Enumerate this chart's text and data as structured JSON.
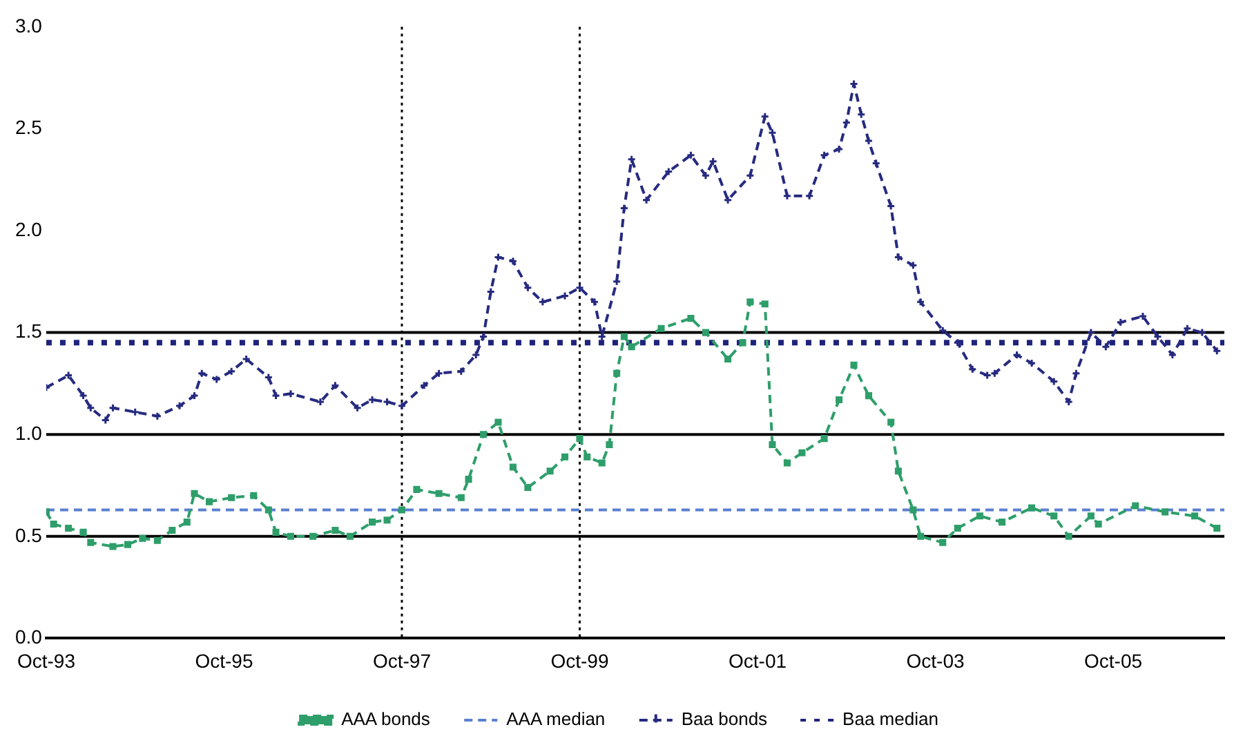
{
  "chart_data": {
    "type": "line",
    "xlim": [
      "1993-10",
      "2007-01"
    ],
    "xticks": [
      {
        "value": "1993-10",
        "label": "Oct-93"
      },
      {
        "value": "1995-10",
        "label": "Oct-95"
      },
      {
        "value": "1997-10",
        "label": "Oct-97"
      },
      {
        "value": "1999-10",
        "label": "Oct-99"
      },
      {
        "value": "2001-10",
        "label": "Oct-01"
      },
      {
        "value": "2003-10",
        "label": "Oct-03"
      },
      {
        "value": "2005-10",
        "label": "Oct-05"
      }
    ],
    "ylim": [
      0,
      3
    ],
    "yticks": [
      {
        "value": 0,
        "label": "0.0"
      },
      {
        "value": 0.5,
        "label": "0.5"
      },
      {
        "value": 1,
        "label": "1.0"
      },
      {
        "value": 1.5,
        "label": "1.5"
      },
      {
        "value": 2,
        "label": "2.0"
      },
      {
        "value": 2.5,
        "label": "2.5"
      },
      {
        "value": 3,
        "label": "3.0"
      }
    ],
    "grid": false,
    "legend": "bottom",
    "ref_lines": [
      {
        "axis": "y",
        "value": 0.5,
        "color": "#000000",
        "line_style": "solid"
      },
      {
        "axis": "y",
        "value": 1,
        "color": "#000000",
        "line_style": "solid"
      },
      {
        "axis": "y",
        "value": 1.5,
        "color": "#000000",
        "line_style": "solid"
      },
      {
        "axis": "x",
        "value": "1997-10",
        "color": "#000000",
        "line_style": "dotted"
      },
      {
        "axis": "x",
        "value": "1999-10",
        "color": "#000000",
        "line_style": "dotted"
      }
    ],
    "series": [
      {
        "name": "AAA bonds",
        "color": "#2e9e6a",
        "line_style": "dashed",
        "marker": "square",
        "x": [
          "1993-10",
          "1993-11",
          "1994-01",
          "1994-03",
          "1994-04",
          "1994-07",
          "1994-09",
          "1994-11",
          "1995-01",
          "1995-03",
          "1995-05",
          "1995-06",
          "1995-08",
          "1995-11",
          "1996-02",
          "1996-04",
          "1996-05",
          "1996-07",
          "1996-10",
          "1997-01",
          "1997-03",
          "1997-06",
          "1997-08",
          "1997-10",
          "1997-12",
          "1998-03",
          "1998-06",
          "1998-07",
          "1998-09",
          "1998-11",
          "1999-01",
          "1999-03",
          "1999-06",
          "1999-08",
          "1999-10",
          "1999-11",
          "2000-01",
          "2000-02",
          "2000-03",
          "2000-04",
          "2000-05",
          "2000-09",
          "2001-01",
          "2001-03",
          "2001-06",
          "2001-08",
          "2001-09",
          "2001-11",
          "2001-12",
          "2002-02",
          "2002-04",
          "2002-07",
          "2002-09",
          "2002-11",
          "2003-01",
          "2003-04",
          "2003-05",
          "2003-07",
          "2003-08",
          "2003-11",
          "2004-01",
          "2004-04",
          "2004-07",
          "2004-11",
          "2005-02",
          "2005-04",
          "2005-07",
          "2005-08",
          "2006-01",
          "2006-05",
          "2006-09",
          "2006-12"
        ],
        "values": [
          0.62,
          0.56,
          0.54,
          0.52,
          0.47,
          0.45,
          0.46,
          0.49,
          0.48,
          0.53,
          0.57,
          0.71,
          0.67,
          0.69,
          0.7,
          0.63,
          0.52,
          0.5,
          0.5,
          0.53,
          0.5,
          0.57,
          0.58,
          0.63,
          0.73,
          0.71,
          0.69,
          0.78,
          1.0,
          1.06,
          0.84,
          0.74,
          0.82,
          0.89,
          0.98,
          0.89,
          0.86,
          0.95,
          1.3,
          1.48,
          1.43,
          1.52,
          1.57,
          1.5,
          1.37,
          1.45,
          1.65,
          1.64,
          0.95,
          0.86,
          0.91,
          0.98,
          1.17,
          1.34,
          1.19,
          1.06,
          0.82,
          0.63,
          0.5,
          0.47,
          0.54,
          0.6,
          0.57,
          0.64,
          0.6,
          0.5,
          0.6,
          0.56,
          0.65,
          0.62,
          0.6,
          0.54
        ]
      },
      {
        "name": "AAA median",
        "color": "#5b7fd0",
        "line_style": "dashed",
        "marker": "none",
        "x": [
          "1993-10",
          "2007-01"
        ],
        "values": [
          0.63,
          0.63
        ]
      },
      {
        "name": "Baa bonds",
        "color": "#262a7f",
        "line_style": "dashed",
        "marker": "cross",
        "x": [
          "1993-10",
          "1994-01",
          "1994-03",
          "1994-04",
          "1994-06",
          "1994-07",
          "1994-10",
          "1995-01",
          "1995-04",
          "1995-06",
          "1995-07",
          "1995-09",
          "1995-11",
          "1996-01",
          "1996-04",
          "1996-05",
          "1996-07",
          "1996-11",
          "1997-01",
          "1997-04",
          "1997-06",
          "1997-08",
          "1997-10",
          "1998-01",
          "1998-03",
          "1998-06",
          "1998-08",
          "1998-09",
          "1998-10",
          "1998-11",
          "1999-01",
          "1999-03",
          "1999-05",
          "1999-08",
          "1999-10",
          "1999-12",
          "2000-01",
          "2000-03",
          "2000-04",
          "2000-05",
          "2000-07",
          "2000-10",
          "2001-01",
          "2001-03",
          "2001-04",
          "2001-06",
          "2001-09",
          "2001-11",
          "2001-12",
          "2002-02",
          "2002-05",
          "2002-07",
          "2002-09",
          "2002-10",
          "2002-11",
          "2002-12",
          "2003-01",
          "2003-02",
          "2003-04",
          "2003-05",
          "2003-07",
          "2003-08",
          "2003-11",
          "2004-01",
          "2004-03",
          "2004-05",
          "2004-06",
          "2004-09",
          "2004-11",
          "2005-02",
          "2005-04",
          "2005-05",
          "2005-07",
          "2005-09",
          "2005-11",
          "2006-02",
          "2006-04",
          "2006-06",
          "2006-08",
          "2006-10",
          "2006-12"
        ],
        "values": [
          1.23,
          1.29,
          1.19,
          1.13,
          1.07,
          1.13,
          1.11,
          1.09,
          1.14,
          1.19,
          1.3,
          1.27,
          1.31,
          1.37,
          1.28,
          1.19,
          1.2,
          1.16,
          1.24,
          1.13,
          1.17,
          1.16,
          1.14,
          1.24,
          1.3,
          1.31,
          1.39,
          1.48,
          1.7,
          1.87,
          1.85,
          1.72,
          1.65,
          1.68,
          1.72,
          1.65,
          1.48,
          1.75,
          2.11,
          2.35,
          2.15,
          2.29,
          2.37,
          2.27,
          2.34,
          2.15,
          2.27,
          2.56,
          2.48,
          2.17,
          2.17,
          2.37,
          2.4,
          2.53,
          2.72,
          2.57,
          2.44,
          2.33,
          2.12,
          1.87,
          1.83,
          1.65,
          1.51,
          1.45,
          1.32,
          1.29,
          1.3,
          1.39,
          1.35,
          1.26,
          1.16,
          1.3,
          1.5,
          1.43,
          1.55,
          1.58,
          1.48,
          1.39,
          1.52,
          1.5,
          1.41
        ]
      },
      {
        "name": "Baa median",
        "color": "#1f237a",
        "line_style": "dotted",
        "marker": "none",
        "x": [
          "1993-10",
          "2007-01"
        ],
        "values": [
          1.45,
          1.45
        ]
      }
    ]
  }
}
